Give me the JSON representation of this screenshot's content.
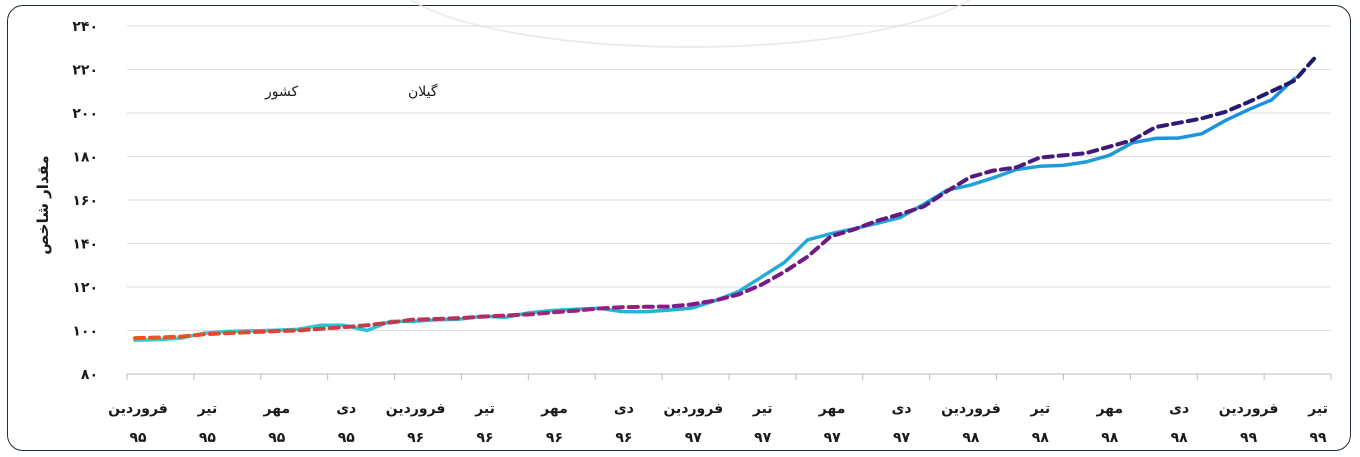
{
  "chart_data": {
    "type": "line",
    "ylabel": "مقدار شاخص",
    "ylim": [
      80,
      240
    ],
    "y_ticks": [
      "۸۰",
      "۱۰۰",
      "۱۲۰",
      "۱۴۰",
      "۱۶۰",
      "۱۸۰",
      "۲۰۰",
      "۲۲۰",
      "۲۴۰"
    ],
    "y_tick_values": [
      80,
      100,
      120,
      140,
      160,
      180,
      200,
      220,
      240
    ],
    "x_labels": [
      {
        "month": "فروردین",
        "year": "۹۵"
      },
      {
        "month": "تیر",
        "year": "۹۵"
      },
      {
        "month": "مهر",
        "year": "۹۵"
      },
      {
        "month": "دی",
        "year": "۹۵"
      },
      {
        "month": "فروردین",
        "year": "۹۶"
      },
      {
        "month": "تیر",
        "year": "۹۶"
      },
      {
        "month": "مهر",
        "year": "۹۶"
      },
      {
        "month": "دی",
        "year": "۹۶"
      },
      {
        "month": "فروردین",
        "year": "۹۷"
      },
      {
        "month": "تیر",
        "year": "۹۷"
      },
      {
        "month": "مهر",
        "year": "۹۷"
      },
      {
        "month": "دی",
        "year": "۹۷"
      },
      {
        "month": "فروردین",
        "year": "۹۸"
      },
      {
        "month": "تیر",
        "year": "۹۸"
      },
      {
        "month": "مهر",
        "year": "۹۸"
      },
      {
        "month": "دی",
        "year": "۹۸"
      },
      {
        "month": "فروردین",
        "year": "۹۹"
      },
      {
        "month": "تیر",
        "year": "۹۹"
      }
    ],
    "grid": true,
    "legend_position": "top-left",
    "series": [
      {
        "name": "کشور",
        "style": "dashed",
        "color_start": "#f0571d",
        "color_mid": "#8a1a8a",
        "color_end": "#1a1a6e",
        "values": [
          96.5,
          96.8,
          97.2,
          98.3,
          98.8,
          99.2,
          99.7,
          100.0,
          100.8,
          101.5,
          102.4,
          103.7,
          105.0,
          105.3,
          105.7,
          106.4,
          106.9,
          107.4,
          108.3,
          109.1,
          110.1,
          110.7,
          110.9,
          111.0,
          112.0,
          113.8,
          116.5,
          121.0,
          127.0,
          134.0,
          143.3,
          146.5,
          150.5,
          153.5,
          157.0,
          164.0,
          170.5,
          173.5,
          175.0,
          179.5,
          180.5,
          181.5,
          184.5,
          187.5,
          193.5,
          195.5,
          197.5,
          200.5,
          205.0,
          210.0,
          215.0,
          227.0
        ]
      },
      {
        "name": "گیلان",
        "style": "solid",
        "color_start": "#2ed1cf",
        "color_end": "#1a8ce0",
        "values": [
          95.5,
          95.8,
          96.5,
          98.8,
          99.6,
          99.8,
          100.1,
          100.5,
          102.4,
          102.4,
          100.0,
          104.2,
          104.2,
          104.9,
          105.2,
          106.6,
          106.1,
          108.2,
          109.2,
          109.8,
          110.2,
          108.7,
          108.6,
          109.4,
          110.3,
          113.7,
          117.8,
          124.5,
          131.3,
          141.7,
          144.5,
          146.8,
          149.3,
          152.0,
          158.0,
          164.5,
          166.8,
          170.2,
          174.0,
          175.5,
          175.9,
          177.5,
          180.5,
          186.3,
          188.3,
          188.5,
          190.5,
          196.5,
          201.5,
          206.0,
          216.0
        ]
      }
    ]
  }
}
